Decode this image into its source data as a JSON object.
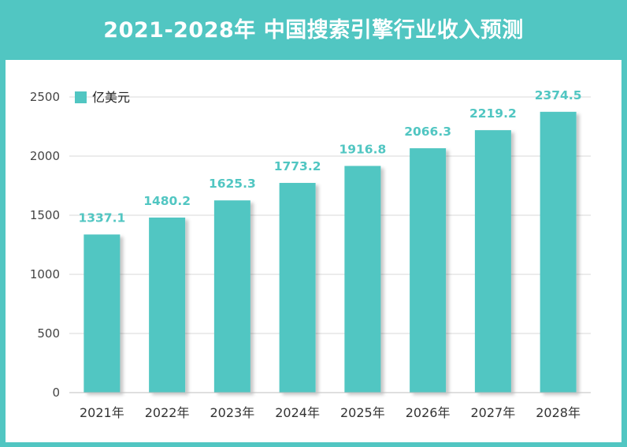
{
  "title": "2021-2028年 中国搜索引擎行业收入预测",
  "colors": {
    "accent": "#51c6c2",
    "background": "#ffffff",
    "grid": "#d9d9d9"
  },
  "chart_data": {
    "type": "bar",
    "categories": [
      "2021年",
      "2022年",
      "2023年",
      "2024年",
      "2025年",
      "2026年",
      "2027年",
      "2028年"
    ],
    "series": [
      {
        "name": "亿美元",
        "values": [
          1337.1,
          1480.2,
          1625.3,
          1773.2,
          1916.8,
          2066.3,
          2219.2,
          2374.5
        ]
      }
    ],
    "data_labels": [
      "1337.1",
      "1480.2",
      "1625.3",
      "1773.2",
      "1916.8",
      "2066.3",
      "2219.2",
      "2374.5"
    ],
    "yticks": [
      0,
      500,
      1000,
      1500,
      2000,
      2500
    ],
    "ylim": [
      0,
      2500
    ],
    "grid": true,
    "legend": "top-left",
    "xlabel": "",
    "ylabel": ""
  }
}
